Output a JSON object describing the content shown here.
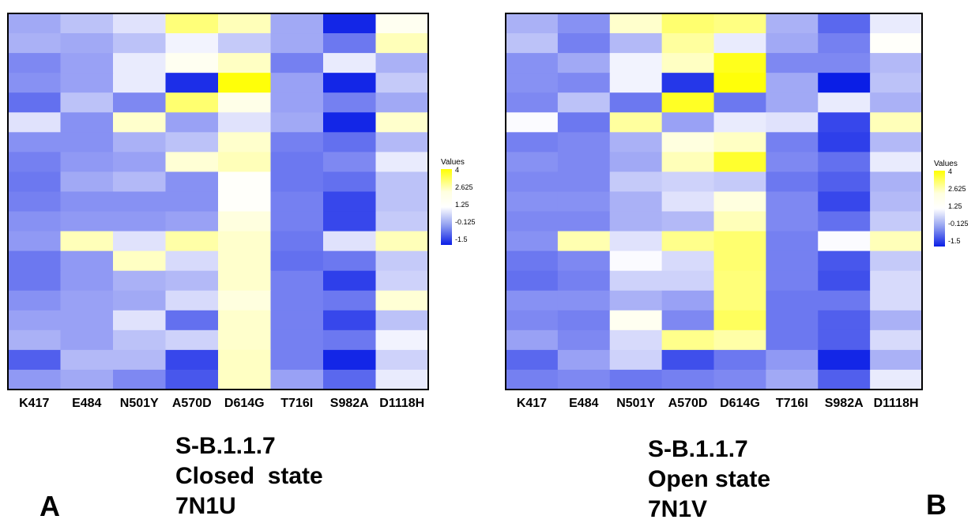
{
  "colors": {
    "low": "#0a1ee6",
    "mid": "#ffffff",
    "high": "#ffff00"
  },
  "legend": {
    "title": "Values",
    "ticks": [
      "4",
      "2.625",
      "1.25",
      "-0.125",
      "-1.5"
    ]
  },
  "panels": [
    {
      "label": "A",
      "caption": [
        "S-B.1.1.7",
        "Closed  state",
        "7N1U"
      ]
    },
    {
      "label": "B",
      "caption": [
        "S-B.1.1.7",
        "Open state",
        "7N1V"
      ]
    }
  ],
  "chart_data": [
    {
      "type": "heatmap",
      "title": "",
      "x_categories": [
        "K417",
        "E484",
        "N501Y",
        "A570D",
        "D614G",
        "T716I",
        "S982A",
        "D1118H"
      ],
      "zlim": [
        -1.5,
        4
      ],
      "legend_title": "Values",
      "rows": [
        [
          0.2,
          0.5,
          0.9,
          2.7,
          2.0,
          0.2,
          -1.4,
          1.4
        ],
        [
          0.3,
          0.2,
          0.5,
          1.1,
          0.6,
          0.2,
          -0.4,
          2.0
        ],
        [
          -0.2,
          0.1,
          1.0,
          1.4,
          1.9,
          -0.3,
          1.0,
          0.3
        ],
        [
          -0.1,
          0.1,
          1.0,
          -1.3,
          3.9,
          0.1,
          -1.4,
          0.6
        ],
        [
          -0.5,
          0.5,
          -0.2,
          2.8,
          1.5,
          0.1,
          -0.3,
          0.2
        ],
        [
          0.9,
          -0.1,
          1.8,
          0.1,
          0.9,
          0.2,
          -1.4,
          1.8
        ],
        [
          -0.1,
          -0.1,
          0.3,
          0.5,
          1.8,
          -0.3,
          -0.5,
          0.4
        ],
        [
          -0.3,
          0.0,
          0.1,
          1.7,
          2.0,
          -0.4,
          -0.2,
          1.0
        ],
        [
          -0.4,
          0.2,
          0.4,
          -0.1,
          1.3,
          -0.4,
          -0.5,
          0.5
        ],
        [
          -0.3,
          -0.1,
          -0.1,
          -0.1,
          1.3,
          -0.3,
          -1.0,
          0.5
        ],
        [
          -0.1,
          0.0,
          0.0,
          0.1,
          1.6,
          -0.3,
          -1.0,
          0.6
        ],
        [
          0.0,
          2.0,
          0.9,
          2.2,
          1.8,
          -0.4,
          0.9,
          2.0
        ],
        [
          -0.4,
          0.0,
          1.9,
          0.8,
          1.8,
          -0.5,
          -0.4,
          0.6
        ],
        [
          -0.4,
          0.0,
          0.3,
          0.4,
          1.8,
          -0.3,
          -1.1,
          0.7
        ],
        [
          -0.1,
          0.1,
          0.2,
          0.8,
          1.6,
          -0.3,
          -0.4,
          1.7
        ],
        [
          0.1,
          0.1,
          0.9,
          -0.5,
          1.8,
          -0.3,
          -1.0,
          0.5
        ],
        [
          0.3,
          0.1,
          0.5,
          0.7,
          1.8,
          -0.3,
          -0.4,
          1.1
        ],
        [
          -0.7,
          0.4,
          0.4,
          -1.0,
          1.9,
          -0.3,
          -1.4,
          0.7
        ],
        [
          0.0,
          0.2,
          -0.2,
          -0.8,
          1.9,
          0.1,
          -0.6,
          1.0
        ]
      ]
    },
    {
      "type": "heatmap",
      "title": "",
      "x_categories": [
        "K417",
        "E484",
        "N501Y",
        "A570D",
        "D614G",
        "T716I",
        "S982A",
        "D1118H"
      ],
      "zlim": [
        -1.5,
        4
      ],
      "legend_title": "Values",
      "rows": [
        [
          0.3,
          -0.1,
          1.8,
          2.8,
          2.6,
          0.3,
          -0.6,
          1.0
        ],
        [
          0.5,
          -0.3,
          0.4,
          2.3,
          1.0,
          0.2,
          -0.3,
          1.3
        ],
        [
          -0.1,
          0.2,
          1.1,
          1.9,
          3.7,
          -0.2,
          -0.2,
          0.4
        ],
        [
          -0.1,
          -0.2,
          1.1,
          -1.2,
          3.9,
          0.2,
          -1.5,
          0.5
        ],
        [
          -0.2,
          0.5,
          -0.4,
          3.6,
          -0.4,
          0.2,
          1.0,
          0.3
        ],
        [
          1.2,
          -0.4,
          2.3,
          0.1,
          1.0,
          0.9,
          -1.0,
          2.0
        ],
        [
          -0.3,
          -0.2,
          0.3,
          1.6,
          1.9,
          -0.3,
          -1.1,
          0.4
        ],
        [
          -0.1,
          -0.2,
          0.2,
          2.0,
          3.5,
          -0.2,
          -0.5,
          1.0
        ],
        [
          -0.2,
          -0.2,
          0.6,
          0.7,
          0.6,
          -0.4,
          -0.7,
          0.3
        ],
        [
          -0.1,
          -0.1,
          0.3,
          0.9,
          1.6,
          -0.2,
          -1.0,
          0.4
        ],
        [
          -0.2,
          -0.2,
          0.3,
          0.4,
          2.0,
          -0.2,
          -0.5,
          0.6
        ],
        [
          -0.1,
          2.1,
          0.9,
          2.5,
          2.8,
          -0.3,
          1.2,
          2.0
        ],
        [
          -0.4,
          -0.2,
          1.2,
          0.8,
          2.8,
          -0.3,
          -0.8,
          0.6
        ],
        [
          -0.5,
          -0.3,
          0.7,
          0.7,
          2.7,
          -0.3,
          -0.9,
          0.8
        ],
        [
          -0.1,
          -0.1,
          0.3,
          0.1,
          2.7,
          -0.4,
          -0.4,
          0.8
        ],
        [
          -0.2,
          -0.3,
          1.4,
          -0.2,
          3.0,
          -0.4,
          -0.7,
          0.3
        ],
        [
          0.1,
          -0.2,
          0.8,
          2.5,
          2.2,
          -0.4,
          -0.7,
          0.8
        ],
        [
          -0.6,
          0.1,
          0.7,
          -0.9,
          -0.4,
          0.0,
          -1.4,
          0.3
        ],
        [
          -0.3,
          -0.2,
          -0.4,
          -0.3,
          -0.2,
          0.2,
          -0.7,
          1.0
        ]
      ]
    }
  ]
}
